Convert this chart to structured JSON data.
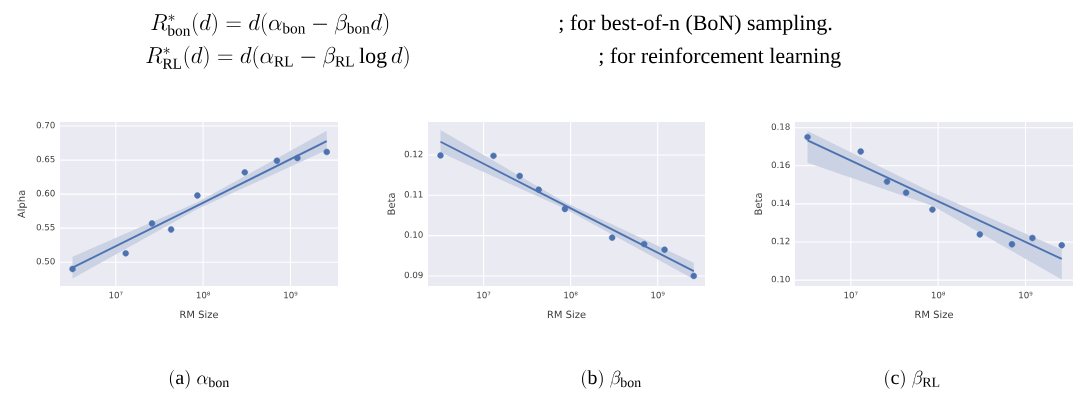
{
  "chart_data": [
    {
      "type": "scatter",
      "xlabel": "RM Size",
      "ylabel": "Alpha",
      "log": "x",
      "grid": true,
      "marker": "circle",
      "xlim": [
        2300000,
        3500000000
      ],
      "ylim": [
        0.465,
        0.706
      ],
      "xticks": [
        {
          "value": 10000000,
          "label": "10⁷"
        },
        {
          "value": 100000000,
          "label": "10⁸"
        },
        {
          "value": 1000000000,
          "label": "10⁹"
        }
      ],
      "yticks": [
        {
          "value": 0.5,
          "label": "0.50"
        },
        0.55,
        {
          "value": 0.6,
          "label": "0.60"
        },
        0.65,
        {
          "value": 0.7,
          "label": "0.70"
        }
      ],
      "x": [
        3200000,
        13000000,
        26000000,
        43000000,
        86000000,
        300000000,
        700000000,
        1200000000,
        2600000000
      ],
      "series": [
        {
          "color": "#4c72b0",
          "values": [
            0.49,
            0.513,
            0.557,
            0.548,
            0.598,
            0.632,
            0.649,
            0.653,
            0.662
          ]
        },
        {
          "type": "line",
          "marker": "none",
          "color": "#4c72b0",
          "x": [
            3200000,
            86000000,
            2600000000
          ],
          "values": [
            0.492,
            0.583,
            0.678
          ],
          "lower": [
            0.476,
            0.578,
            0.665
          ],
          "upper": [
            0.508,
            0.588,
            0.693
          ]
        }
      ],
      "annotations": [
        "R^{*}_{\\mathrm{bon}}(d) = d(\\alpha_{\\mathrm{bon}} - \\beta_{\\mathrm{bon}} d)",
        "; for best-of-n (BoN) sampling.",
        "R^{*}_{\\mathrm{RL}}(d) = d(\\alpha_{\\mathrm{RL}} - \\beta_{\\mathrm{RL}} \\log d)",
        "; for reinforcement learning",
        "\\mathrm{(a)}\\ \\alpha_{\\mathrm{bon}}"
      ]
    },
    {
      "type": "scatter",
      "xlabel": "RM Size",
      "ylabel": "Beta",
      "log": "x",
      "grid": true,
      "marker": "circle",
      "xlim": [
        2300000,
        3500000000
      ],
      "ylim": [
        0.0875,
        0.1282
      ],
      "xticks": [
        {
          "value": 10000000,
          "label": "10⁷"
        },
        {
          "value": 100000000,
          "label": "10⁸"
        },
        {
          "value": 1000000000,
          "label": "10⁹"
        }
      ],
      "yticks": [
        0.09,
        {
          "value": 0.1,
          "label": "0.10"
        },
        0.11,
        0.12
      ],
      "x": [
        3200000,
        13000000,
        26000000,
        43000000,
        86000000,
        300000000,
        700000000,
        1200000000,
        2600000000
      ],
      "series": [
        {
          "color": "#4c72b0",
          "values": [
            0.1199,
            0.1198,
            0.1148,
            0.1114,
            0.1066,
            0.0995,
            0.0979,
            0.0965,
            0.09
          ]
        },
        {
          "type": "line",
          "marker": "none",
          "color": "#4c72b0",
          "x": [
            3200000,
            86000000,
            2600000000
          ],
          "values": [
            0.1233,
            0.1075,
            0.0912
          ],
          "lower": [
            0.1206,
            0.1067,
            0.0892
          ],
          "upper": [
            0.1262,
            0.1083,
            0.0933
          ]
        }
      ],
      "annotations": [
        "\\mathrm{(b)}\\ \\beta_{\\mathrm{bon}}"
      ]
    },
    {
      "type": "scatter",
      "xlabel": "RM Size",
      "ylabel": "Beta",
      "log": "x",
      "grid": true,
      "marker": "circle",
      "xlim": [
        2300000,
        3500000000
      ],
      "ylim": [
        0.0969,
        0.183
      ],
      "xticks": [
        {
          "value": 10000000,
          "label": "10⁷"
        },
        {
          "value": 100000000,
          "label": "10⁸"
        },
        {
          "value": 1000000000,
          "label": "10⁹"
        }
      ],
      "yticks": [
        {
          "value": 0.1,
          "label": "0.10"
        },
        0.12,
        0.14,
        0.16,
        0.18
      ],
      "x": [
        3200000,
        13000000,
        26000000,
        43000000,
        86000000,
        300000000,
        700000000,
        1200000000,
        2600000000
      ],
      "series": [
        {
          "color": "#4c72b0",
          "values": [
            0.1751,
            0.1675,
            0.1517,
            0.1459,
            0.137,
            0.124,
            0.1188,
            0.1221,
            0.1183
          ]
        },
        {
          "type": "line",
          "marker": "none",
          "color": "#4c72b0",
          "x": [
            3200000,
            86000000,
            2600000000
          ],
          "values": [
            0.1734,
            0.1428,
            0.1111
          ],
          "lower": [
            0.1616,
            0.139,
            0.1003
          ],
          "upper": [
            0.1783,
            0.146,
            0.116
          ]
        }
      ],
      "annotations": [
        "\\mathrm{(c)}\\ \\beta_{\\mathrm{RL}}"
      ]
    }
  ]
}
